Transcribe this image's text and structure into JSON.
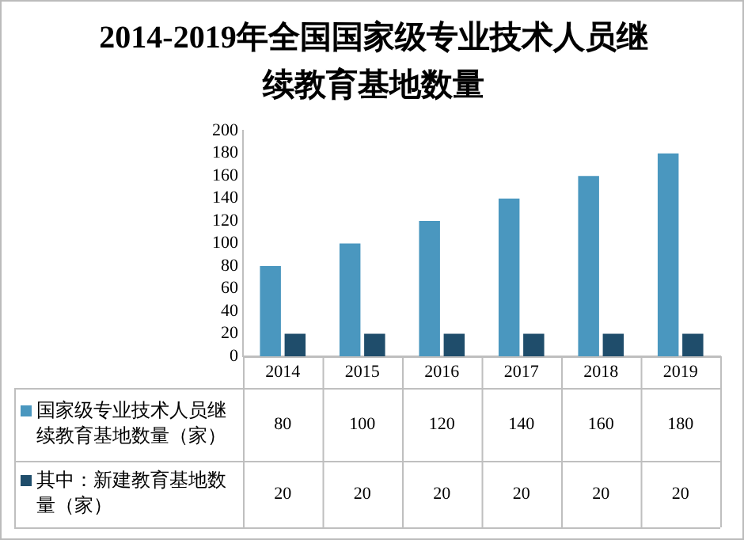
{
  "chart_data": {
    "type": "bar",
    "title": "2014-2019年全国国家级专业技术人员继续教育基地数量",
    "categories": [
      "2014",
      "2015",
      "2016",
      "2017",
      "2018",
      "2019"
    ],
    "series": [
      {
        "name": "国家级专业技术人员继续教育基地数量（家）",
        "color": "#4a97bf",
        "values": [
          80,
          100,
          120,
          140,
          160,
          180
        ]
      },
      {
        "name": "其中：新建教育基地数量（家）",
        "color": "#1f4d6b",
        "values": [
          20,
          20,
          20,
          20,
          20,
          20
        ]
      }
    ],
    "ylim": [
      0,
      200
    ],
    "yticks": [
      0,
      20,
      40,
      60,
      80,
      100,
      120,
      140,
      160,
      180,
      200
    ],
    "grid": false,
    "legend": "bottom",
    "data_labels": true
  }
}
